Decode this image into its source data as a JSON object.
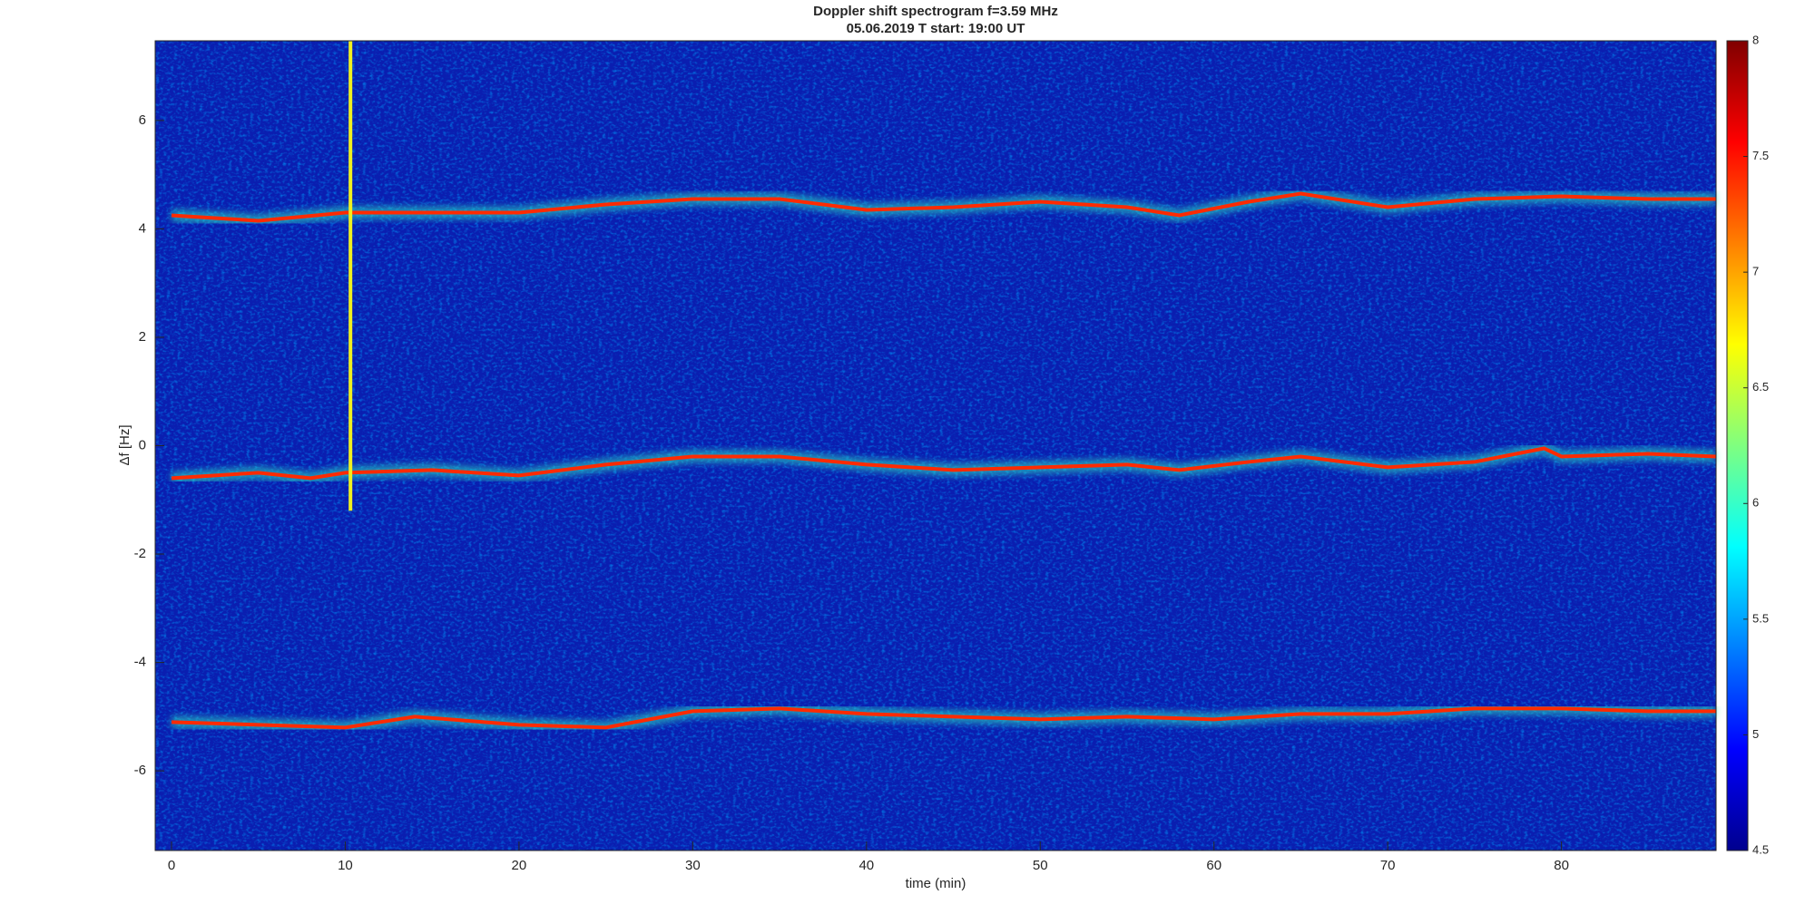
{
  "chart_data": {
    "type": "spectrogram",
    "title": "Doppler shift spectrogram f=3.59 MHz",
    "subtitle": "05.06.2019   T start: 19:00 UT",
    "x_label": "time (min)",
    "y_label": "Δf [Hz]",
    "xlim": [
      -0.94,
      88.9
    ],
    "xticks": [
      0,
      10,
      20,
      30,
      40,
      50,
      60,
      70,
      80
    ],
    "ylim": [
      -7.47,
      7.47
    ],
    "yticks": [
      -6,
      -4,
      -2,
      0,
      2,
      4,
      6
    ],
    "clim": [
      4.5,
      8
    ],
    "cticks": [
      4.5,
      5,
      5.5,
      6,
      6.5,
      7,
      7.5,
      8
    ],
    "series": [
      {
        "color": "#ff2a00",
        "x": [
          0,
          5,
          10,
          15,
          20,
          25,
          30,
          35,
          40,
          45,
          50,
          55,
          58,
          62,
          65,
          70,
          75,
          80,
          85,
          88.9
        ],
        "values": [
          4.25,
          4.15,
          4.3,
          4.3,
          4.3,
          4.45,
          4.55,
          4.55,
          4.35,
          4.4,
          4.5,
          4.4,
          4.25,
          4.5,
          4.65,
          4.4,
          4.55,
          4.6,
          4.55,
          4.55
        ]
      },
      {
        "color": "#ff2a00",
        "x": [
          0,
          5,
          8,
          10,
          15,
          20,
          25,
          30,
          35,
          40,
          45,
          50,
          55,
          58,
          62,
          65,
          70,
          75,
          79,
          80,
          85,
          88.9
        ],
        "values": [
          -0.6,
          -0.5,
          -0.6,
          -0.5,
          -0.45,
          -0.55,
          -0.35,
          -0.2,
          -0.2,
          -0.35,
          -0.45,
          -0.4,
          -0.35,
          -0.45,
          -0.3,
          -0.2,
          -0.4,
          -0.3,
          -0.05,
          -0.2,
          -0.15,
          -0.2
        ]
      },
      {
        "color": "#ff2a00",
        "x": [
          0,
          5,
          10,
          14,
          20,
          25,
          30,
          35,
          40,
          45,
          50,
          55,
          60,
          65,
          70,
          75,
          80,
          85,
          88.9
        ],
        "values": [
          -5.1,
          -5.15,
          -5.2,
          -5.0,
          -5.15,
          -5.2,
          -4.9,
          -4.85,
          -4.95,
          -5.0,
          -5.05,
          -5.0,
          -5.05,
          -4.95,
          -4.95,
          -4.85,
          -4.85,
          -4.9,
          -4.9
        ]
      },
      {
        "color": "#f0f020",
        "x": [
          10.3,
          10.3
        ],
        "values": [
          -1.2,
          7.47
        ]
      }
    ]
  }
}
